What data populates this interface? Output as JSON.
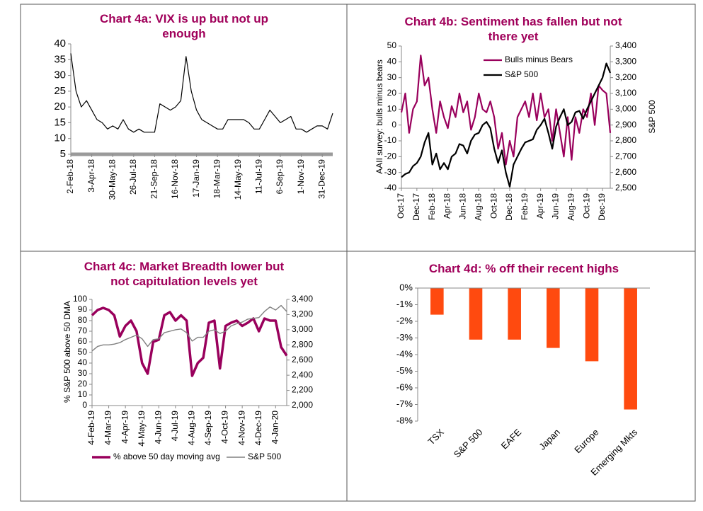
{
  "chart_data": [
    {
      "type": "line",
      "title": "Chart 4a: VIX is up but not up enough",
      "x": [
        "2-Feb-18",
        null,
        null,
        null,
        "3-Apr-18",
        null,
        null,
        null,
        "30-May-18",
        null,
        null,
        null,
        "26-Jul-18",
        null,
        null,
        null,
        "21-Sep-18",
        null,
        null,
        null,
        "16-Nov-18",
        null,
        null,
        null,
        "17-Jan-19",
        null,
        null,
        null,
        "18-Mar-19",
        null,
        null,
        null,
        "14-May-19",
        null,
        null,
        null,
        "11-Jul-19",
        null,
        null,
        null,
        "6-Sep-19",
        null,
        null,
        null,
        "1-Nov-19",
        null,
        null,
        null,
        "31-Dec-19",
        null,
        null
      ],
      "series": [
        {
          "color": "#000000",
          "values": [
            37,
            25,
            20,
            22,
            19,
            16,
            15,
            13,
            14,
            13,
            16,
            13,
            12,
            13,
            12,
            12,
            12,
            21,
            20,
            19,
            20,
            22,
            36,
            25,
            19,
            16,
            15,
            14,
            13,
            13,
            16,
            16,
            16,
            16,
            15,
            13,
            13,
            16,
            19,
            17,
            15,
            16,
            17,
            13,
            13,
            12,
            13,
            14,
            14,
            13,
            18
          ]
        }
      ],
      "ylim": [
        5,
        40
      ],
      "yticks": [
        5,
        10,
        15,
        20,
        25,
        30,
        35,
        40
      ]
    },
    {
      "type": "line",
      "title": "Chart 4b: Sentiment has fallen but not there yet",
      "y_label": "AAII survey: bulls minus bears",
      "y2_label": "S&P 500",
      "legend": "upper center",
      "x": [
        "Oct-17",
        null,
        null,
        null,
        "Dec-17",
        null,
        null,
        null,
        "Feb-18",
        null,
        null,
        null,
        "Apr-18",
        null,
        null,
        null,
        "Jun-18",
        null,
        null,
        null,
        "Aug-18",
        null,
        null,
        null,
        "Oct-18",
        null,
        null,
        null,
        "Dec-18",
        null,
        null,
        null,
        "Feb-19",
        null,
        null,
        null,
        "Apr-19",
        null,
        null,
        null,
        "Jun-19",
        null,
        null,
        null,
        "Aug-19",
        null,
        null,
        null,
        "Oct-19",
        null,
        null,
        null,
        "Dec-19",
        null,
        null
      ],
      "series": [
        {
          "name": "Bulls minus Bears",
          "color": "#99005c",
          "axis": "y",
          "values": [
            8,
            20,
            -5,
            10,
            15,
            44,
            25,
            30,
            10,
            -5,
            15,
            5,
            -2,
            12,
            5,
            20,
            8,
            15,
            -3,
            5,
            20,
            10,
            8,
            15,
            5,
            -15,
            -5,
            -25,
            -10,
            -20,
            5,
            10,
            15,
            5,
            20,
            3,
            20,
            5,
            10,
            -10,
            10,
            -5,
            -20,
            5,
            -22,
            5,
            -5,
            10,
            5,
            20,
            0,
            25,
            22,
            20,
            -5
          ]
        },
        {
          "name": "S&P 500",
          "color": "#000000",
          "axis": "y2",
          "values": [
            2570,
            2590,
            2600,
            2640,
            2660,
            2700,
            2790,
            2850,
            2650,
            2720,
            2620,
            2660,
            2620,
            2700,
            2720,
            2780,
            2770,
            2720,
            2800,
            2840,
            2850,
            2900,
            2920,
            2880,
            2750,
            2660,
            2740,
            2600,
            2510,
            2650,
            2700,
            2750,
            2790,
            2800,
            2810,
            2870,
            2900,
            2940,
            2850,
            2750,
            2890,
            2950,
            3000,
            2900,
            2920,
            2980,
            2990,
            2940,
            3000,
            3050,
            3100,
            3150,
            3200,
            3290,
            3230
          ]
        }
      ],
      "ylim": [
        -40,
        50
      ],
      "yticks": [
        -40,
        -30,
        -20,
        -10,
        0,
        10,
        20,
        30,
        40,
        50
      ],
      "y2lim": [
        2500,
        3400
      ],
      "y2ticks": [
        {
          "value": 2500,
          "label": "2,500"
        },
        {
          "value": 2600,
          "label": "2,600"
        },
        {
          "value": 2700,
          "label": "2,700"
        },
        {
          "value": 2800,
          "label": "2,800"
        },
        {
          "value": 2900,
          "label": "2,900"
        },
        {
          "value": 3000,
          "label": "3,000"
        },
        {
          "value": 3100,
          "label": "3,100"
        },
        {
          "value": 3200,
          "label": "3,200"
        },
        {
          "value": 3300,
          "label": "3,300"
        },
        {
          "value": 3400,
          "label": "3,400"
        }
      ]
    },
    {
      "type": "line",
      "title": "Chart 4c: Market Breadth lower but not capitulation levels yet",
      "y_label": "% S&P 500 above 50 DMA",
      "legend": "lower center",
      "x": [
        "4-Feb-19",
        null,
        null,
        "4-Mar-19",
        null,
        null,
        "4-Apr-19",
        null,
        null,
        "4-May-19",
        null,
        null,
        "4-Jun-19",
        null,
        null,
        "4-Jul-19",
        null,
        null,
        "4-Aug-19",
        null,
        null,
        "4-Sep-19",
        null,
        null,
        "4-Oct-19",
        null,
        null,
        "4-Nov-19",
        null,
        null,
        "4-Dec-19",
        null,
        null,
        "4-Jan-20",
        null,
        null
      ],
      "series": [
        {
          "name": "% above 50 day moving avg",
          "color": "#99005c",
          "axis": "y",
          "values": [
            85,
            90,
            92,
            90,
            85,
            65,
            75,
            80,
            70,
            40,
            30,
            60,
            62,
            85,
            88,
            80,
            85,
            80,
            28,
            40,
            45,
            78,
            80,
            35,
            75,
            78,
            80,
            75,
            78,
            82,
            70,
            82,
            80,
            80,
            55,
            47
          ]
        },
        {
          "name": "S&P 500",
          "color": "#808080",
          "axis": "y2",
          "values": [
            2720,
            2780,
            2800,
            2800,
            2810,
            2830,
            2870,
            2900,
            2930,
            2880,
            2780,
            2870,
            2880,
            2960,
            2980,
            3000,
            3010,
            2960,
            2850,
            2900,
            2900,
            2980,
            3000,
            2950,
            2980,
            3050,
            3080,
            3100,
            3140,
            3150,
            3160,
            3240,
            3300,
            3260,
            3320,
            3240
          ]
        }
      ],
      "ylim": [
        0,
        100
      ],
      "yticks": [
        0,
        10,
        20,
        30,
        40,
        50,
        60,
        70,
        80,
        90,
        100
      ],
      "y2lim": [
        2000,
        3400
      ],
      "y2ticks": [
        {
          "value": 2000,
          "label": "2,000"
        },
        {
          "value": 2200,
          "label": "2,200"
        },
        {
          "value": 2400,
          "label": "2,400"
        },
        {
          "value": 2600,
          "label": "2,600"
        },
        {
          "value": 2800,
          "label": "2,800"
        },
        {
          "value": 3000,
          "label": "3,000"
        },
        {
          "value": 3200,
          "label": "3,200"
        },
        {
          "value": 3400,
          "label": "3,400"
        }
      ]
    },
    {
      "type": "bar",
      "title": "Chart 4d: % off their recent highs",
      "categories": [
        "TSX",
        "S&P 500",
        "EAFE",
        "Japan",
        "Europe",
        "Emerging Mkts"
      ],
      "series": [
        {
          "color": "#ff4a0f",
          "values": [
            -1.6,
            -3.1,
            -3.1,
            -3.6,
            -4.4,
            -7.3
          ]
        }
      ],
      "ylim": [
        -8,
        0
      ],
      "yticks": [
        {
          "value": 0,
          "label": "0%"
        },
        {
          "value": -1,
          "label": "-1%"
        },
        {
          "value": -2,
          "label": "-2%"
        },
        {
          "value": -3,
          "label": "-3%"
        },
        {
          "value": -4,
          "label": "-4%"
        },
        {
          "value": -5,
          "label": "-5%"
        },
        {
          "value": -6,
          "label": "-6%"
        },
        {
          "value": -7,
          "label": "-7%"
        },
        {
          "value": -8,
          "label": "-8%"
        }
      ]
    }
  ]
}
